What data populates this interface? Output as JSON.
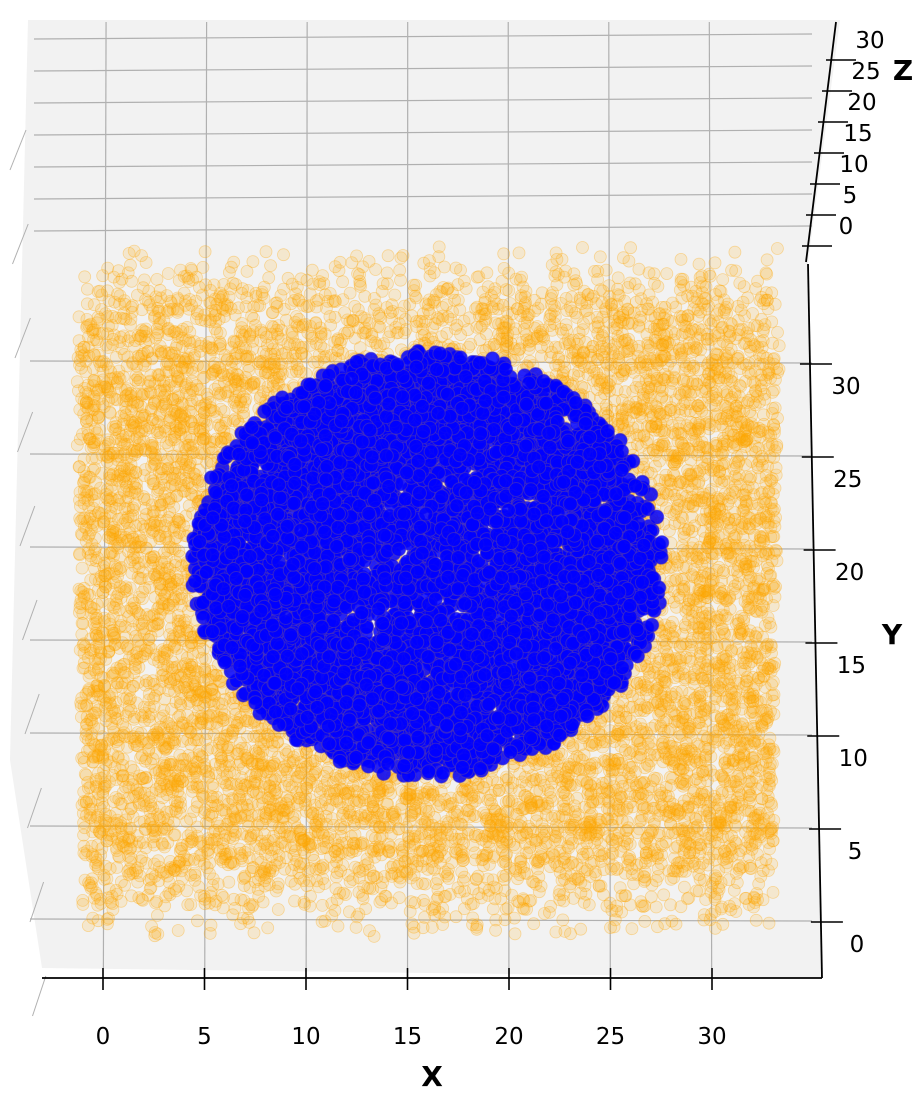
{
  "chart_data": {
    "type": "scatter",
    "projection": "3d",
    "view": "top-down",
    "xlabel": "X",
    "ylabel": "Y",
    "zlabel": "Z",
    "xlim": [
      -3,
      35
    ],
    "ylim": [
      -2,
      34
    ],
    "zlim": [
      -2,
      32
    ],
    "x_ticks": [
      "0",
      "5",
      "10",
      "15",
      "20",
      "25",
      "30"
    ],
    "y_ticks": [
      "0",
      "5",
      "10",
      "15",
      "20",
      "25",
      "30"
    ],
    "z_ticks": [
      "0",
      "5",
      "10",
      "15",
      "20",
      "25",
      "30"
    ],
    "grid": true,
    "legend": "none",
    "pane_color": "#f2f2f2",
    "series": [
      {
        "color": "#ffa500",
        "alpha": 0.15,
        "distribution": "uniform box with central spherical cavity",
        "x_range": [
          -1,
          33
        ],
        "y_range": [
          0,
          32
        ],
        "z_range": [
          0,
          32
        ],
        "cavity_center": [
          16,
          18,
          16
        ],
        "cavity_radius": 12.5,
        "approx_points": 9000
      },
      {
        "color": "#0000ff",
        "alpha": 0.85,
        "distribution": "dense sphere",
        "center": [
          16,
          18,
          16
        ],
        "radius": 11.5,
        "approx_points": 6000
      }
    ]
  }
}
